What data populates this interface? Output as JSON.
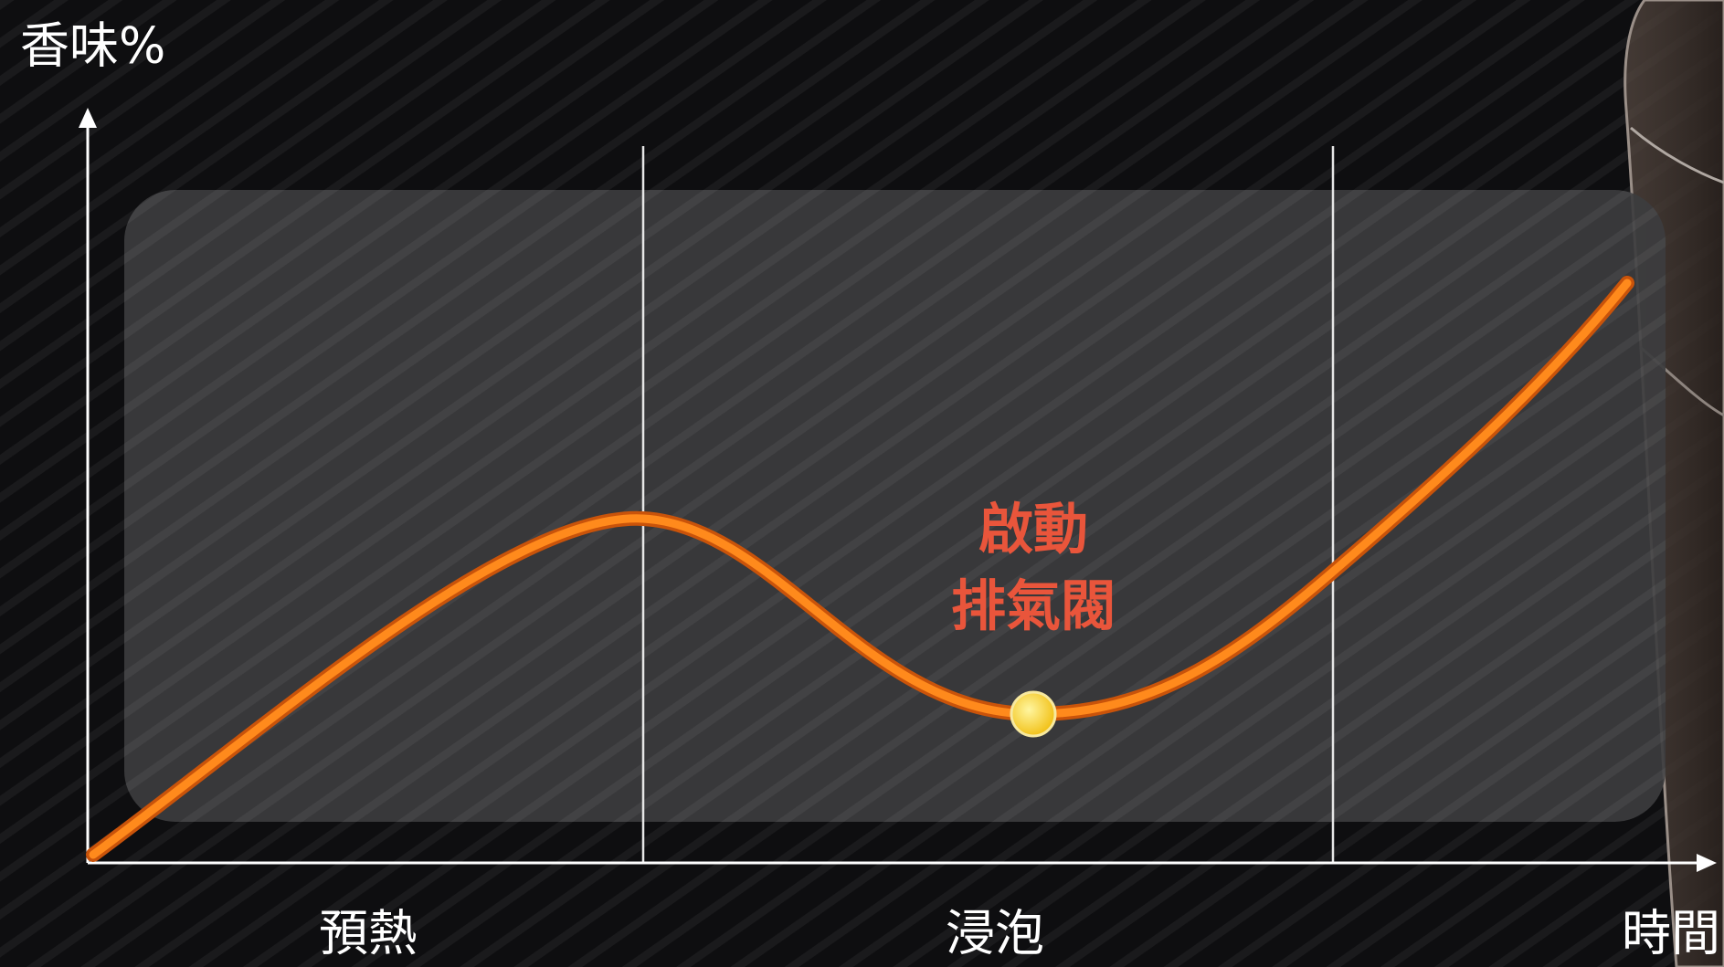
{
  "axis": {
    "y_label": "香味%",
    "x_label": "時間"
  },
  "phases": [
    "預熱",
    "浸泡"
  ],
  "annotation": {
    "lines": [
      "啟動",
      "排氣閥"
    ]
  }
}
